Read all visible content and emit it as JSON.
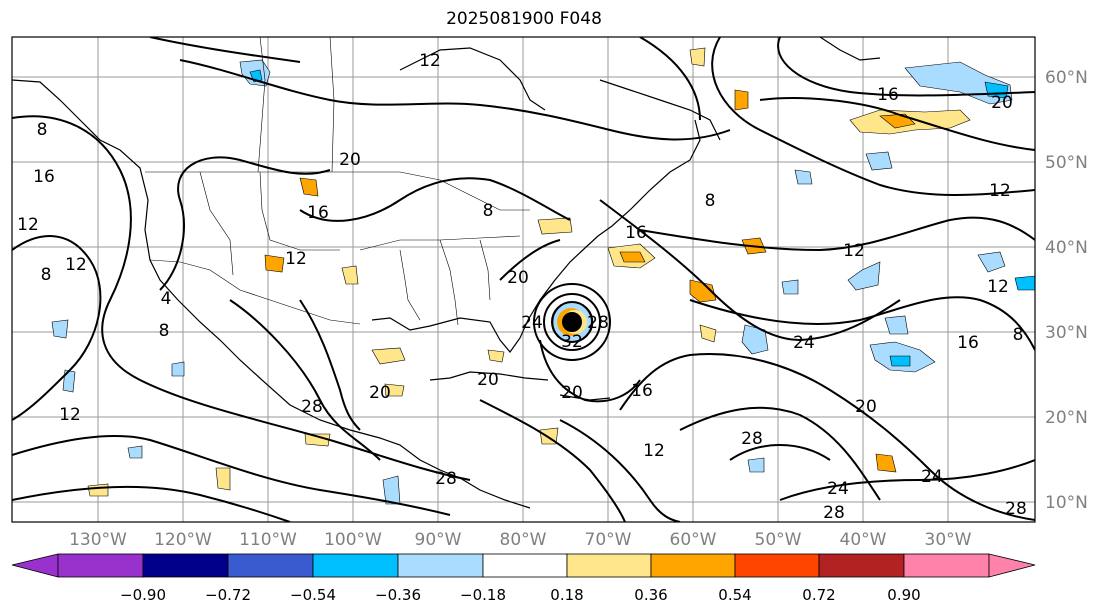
{
  "title": "2025081900 F048",
  "map": {
    "lon_labels": [
      "130°W",
      "120°W",
      "110°W",
      "100°W",
      "90°W",
      "80°W",
      "70°W",
      "60°W",
      "50°W",
      "40°W",
      "30°W"
    ],
    "lat_labels": [
      "60°N",
      "50°N",
      "40°N",
      "30°N",
      "20°N",
      "10°N"
    ],
    "contour_labels": [
      "8",
      "16",
      "12",
      "12",
      "8",
      "4",
      "8",
      "12",
      "20",
      "16",
      "12",
      "8",
      "12",
      "20",
      "24",
      "32",
      "28",
      "20",
      "20",
      "28",
      "28",
      "16",
      "16",
      "20",
      "12",
      "24",
      "28",
      "24",
      "28",
      "20",
      "12",
      "12",
      "16",
      "20",
      "24",
      "16",
      "8",
      "12",
      "28",
      "8"
    ]
  },
  "colorbar": {
    "ticks": [
      "−0.90",
      "−0.72",
      "−0.54",
      "−0.36",
      "−0.18",
      "0.18",
      "0.36",
      "0.54",
      "0.72",
      "0.90"
    ],
    "colors": [
      "#9932cc",
      "#00008b",
      "#3a5bcf",
      "#00bfff",
      "#aadcff",
      "#ffffff",
      "#ffe68a",
      "#ffa500",
      "#ff4500",
      "#b22222",
      "#ff82ab"
    ]
  }
}
